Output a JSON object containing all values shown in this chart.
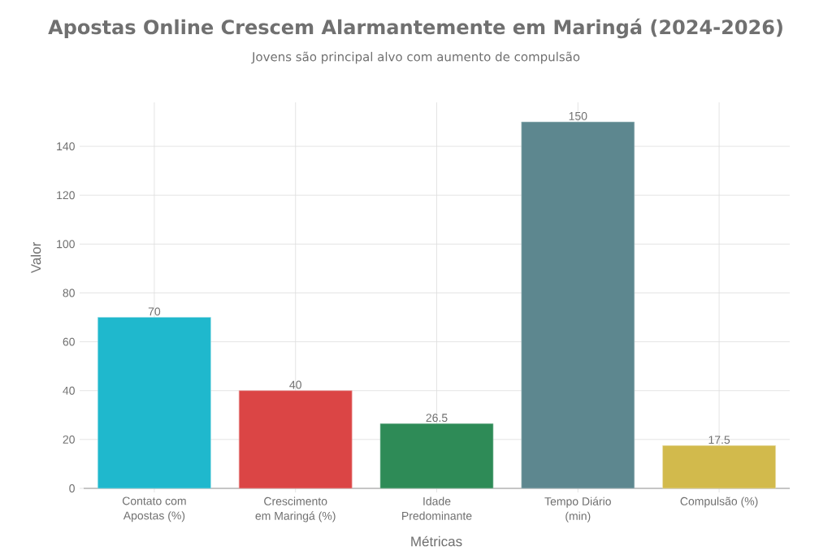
{
  "chart_data": {
    "type": "bar",
    "title": "Apostas Online Crescem Alarmantemente em Maringá (2024-2026)",
    "subtitle": "Jovens são principal alvo com aumento de compulsão",
    "xlabel": "Métricas",
    "ylabel": "Valor",
    "categories": [
      "Contato com Apostas (%)",
      "Crescimento em Maringá (%)",
      "Idade Predominante",
      "Tempo Diário (min)",
      "Compulsão (%)"
    ],
    "values": [
      70,
      40,
      26.5,
      150,
      17.5
    ],
    "colors": [
      "#1fb8cd",
      "#db4545",
      "#2e8b57",
      "#5d878f",
      "#d2ba4c"
    ],
    "ylim": [
      0,
      158
    ],
    "yticks": [
      0,
      20,
      40,
      60,
      80,
      100,
      120,
      140
    ],
    "grid": true,
    "data_labels": true
  }
}
